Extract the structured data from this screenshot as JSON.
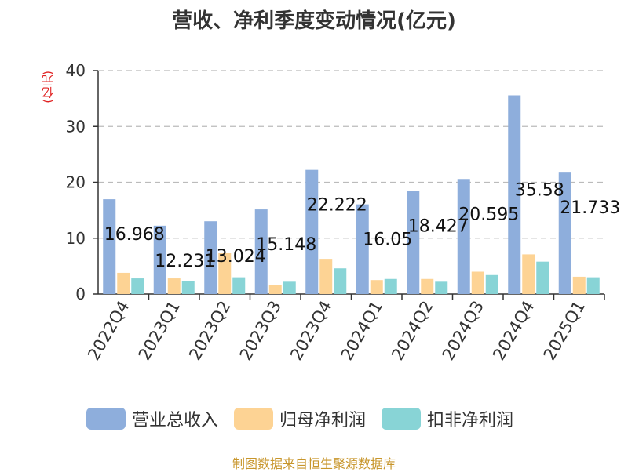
{
  "chart_data": {
    "type": "bar",
    "title": "营收、净利季度变动情况(亿元)",
    "unit_label": "(亿元)",
    "categories": [
      "2022Q4",
      "2023Q1",
      "2023Q2",
      "2023Q3",
      "2023Q4",
      "2024Q1",
      "2024Q2",
      "2024Q3",
      "2024Q4",
      "2025Q1"
    ],
    "series": [
      {
        "name": "营业总收入",
        "color": "#8eaedc",
        "values": [
          16.968,
          12.231,
          13.024,
          15.148,
          22.222,
          16.05,
          18.427,
          20.595,
          35.58,
          21.733
        ],
        "labels": [
          "16.968",
          "12.231",
          "13.024",
          "15.148",
          "22.222",
          "16.05",
          "18.427",
          "20.595",
          "35.58",
          "21.733"
        ]
      },
      {
        "name": "归母净利润",
        "color": "#fdd394",
        "values": [
          3.8,
          2.8,
          7.3,
          1.6,
          6.3,
          2.5,
          2.7,
          4.0,
          7.1,
          3.1
        ]
      },
      {
        "name": "扣非净利润",
        "color": "#88d4d6",
        "values": [
          2.8,
          2.3,
          3.0,
          2.2,
          4.6,
          2.7,
          2.2,
          3.4,
          5.8,
          3.0
        ]
      }
    ],
    "ylim": [
      0,
      40
    ],
    "yticks": [
      "0",
      "10",
      "20",
      "30",
      "40"
    ],
    "grid": true,
    "legend_position": "bottom"
  },
  "source": "制图数据来自恒生聚源数据库"
}
